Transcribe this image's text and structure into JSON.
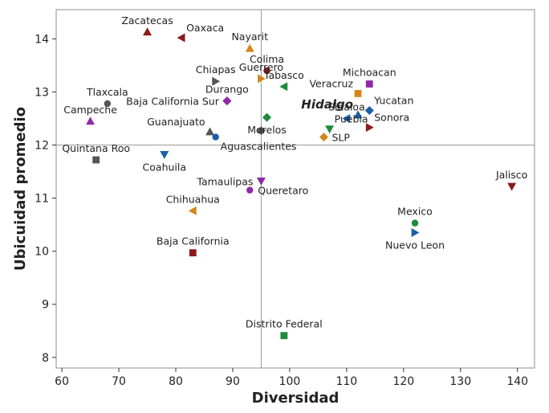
{
  "chart_data": {
    "type": "scatter",
    "title": "",
    "xlabel": "Diversidad",
    "ylabel": "Ubicuidad promedio",
    "xlim": [
      59,
      143
    ],
    "ylim": [
      7.8,
      14.55
    ],
    "xticks": [
      60,
      70,
      80,
      90,
      100,
      110,
      120,
      130,
      140
    ],
    "yticks": [
      8,
      9,
      10,
      11,
      12,
      13,
      14
    ],
    "reference_lines": {
      "x": 95,
      "y": 12
    },
    "points": [
      {
        "label": "Zacatecas",
        "x": 75,
        "y": 14.13,
        "marker": "triangle-up",
        "color": "#8b1a1a",
        "anchor": "n"
      },
      {
        "label": "Oaxaca",
        "x": 81,
        "y": 14.02,
        "marker": "triangle-left",
        "color": "#8b1a1a",
        "anchor": "ne"
      },
      {
        "label": "Nayarit",
        "x": 93,
        "y": 13.82,
        "marker": "triangle-up",
        "color": "#d4861c",
        "anchor": "n"
      },
      {
        "label": "Colima",
        "x": 96,
        "y": 13.4,
        "marker": "circle",
        "color": "#8b1a1a",
        "anchor": "n"
      },
      {
        "label": "Guerrero",
        "x": 95,
        "y": 13.25,
        "marker": "triangle-right",
        "color": "#d4861c",
        "anchor": "n"
      },
      {
        "label": "Chiapas",
        "x": 87,
        "y": 13.2,
        "marker": "triangle-right",
        "color": "#555555",
        "anchor": "n"
      },
      {
        "label": "Tabasco",
        "x": 99,
        "y": 13.1,
        "marker": "triangle-left",
        "color": "#1e8a3e",
        "anchor": "n"
      },
      {
        "label": "Tlaxcala",
        "x": 68,
        "y": 12.78,
        "marker": "circle",
        "color": "#555555",
        "anchor": "n"
      },
      {
        "label": "Durango",
        "x": 89,
        "y": 12.83,
        "marker": "diamond",
        "color": "#8e2aa8",
        "anchor": "n"
      },
      {
        "label": "Baja California Sur",
        "x": 89,
        "y": 12.83,
        "marker": "diamond",
        "color": "#8e2aa8",
        "anchor": "w"
      },
      {
        "label": "Campeche",
        "x": 65,
        "y": 12.45,
        "marker": "triangle-up",
        "color": "#8e2aa8",
        "anchor": "n"
      },
      {
        "label": "Michoacan",
        "x": 114,
        "y": 13.15,
        "marker": "square",
        "color": "#8e2aa8",
        "anchor": "n"
      },
      {
        "label": "Veracruz",
        "x": 112,
        "y": 12.97,
        "marker": "square",
        "color": "#d4861c",
        "anchor": "nw"
      },
      {
        "label": "Sinaloa",
        "x": 110,
        "y": 12.5,
        "marker": "triangle-left",
        "color": "#1a5ea8",
        "anchor": "n"
      },
      {
        "label": "Yucatan",
        "x": 114,
        "y": 12.65,
        "marker": "diamond",
        "color": "#1a5ea8",
        "anchor": "ne"
      },
      {
        "label": "Hidalgo",
        "x": 112,
        "y": 12.57,
        "marker": "triangle-up",
        "color": "#1a5ea8",
        "anchor": "nw",
        "highlight": true
      },
      {
        "label": "Sonora",
        "x": 114,
        "y": 12.33,
        "marker": "triangle-right",
        "color": "#8b1a1a",
        "anchor": "ne"
      },
      {
        "label": "Guanajuato",
        "x": 86,
        "y": 12.25,
        "marker": "triangle-up",
        "color": "#555555",
        "anchor": "nw"
      },
      {
        "label": "Morelos",
        "x": 96,
        "y": 12.52,
        "marker": "diamond",
        "color": "#1e8a3e",
        "anchor": "s"
      },
      {
        "label": "Puebla",
        "x": 107,
        "y": 12.3,
        "marker": "triangle-down",
        "color": "#1e8a3e",
        "anchor": "ne"
      },
      {
        "label": "SLP",
        "x": 106,
        "y": 12.15,
        "marker": "diamond",
        "color": "#d4861c",
        "anchor": "e"
      },
      {
        "label": "",
        "x": 95,
        "y": 12.27,
        "marker": "diamond",
        "color": "#555555",
        "anchor": "none"
      },
      {
        "label": "Aguascalientes",
        "x": 87,
        "y": 12.15,
        "marker": "circle",
        "color": "#1a5ea8",
        "anchor": "se"
      },
      {
        "label": "Quintana Roo",
        "x": 66,
        "y": 11.72,
        "marker": "square",
        "color": "#555555",
        "anchor": "n"
      },
      {
        "label": "Coahuila",
        "x": 78,
        "y": 11.82,
        "marker": "triangle-down",
        "color": "#1a5ea8",
        "anchor": "s"
      },
      {
        "label": "Tamaulipas",
        "x": 95,
        "y": 11.32,
        "marker": "triangle-down",
        "color": "#8e2aa8",
        "anchor": "w"
      },
      {
        "label": "Queretaro",
        "x": 93,
        "y": 11.15,
        "marker": "circle",
        "color": "#8e2aa8",
        "anchor": "e"
      },
      {
        "label": "Jalisco",
        "x": 139,
        "y": 11.22,
        "marker": "triangle-down",
        "color": "#8b1a1a",
        "anchor": "n"
      },
      {
        "label": "Chihuahua",
        "x": 83,
        "y": 10.76,
        "marker": "triangle-left",
        "color": "#d4861c",
        "anchor": "n"
      },
      {
        "label": "Mexico",
        "x": 122,
        "y": 10.53,
        "marker": "circle",
        "color": "#1e8a3e",
        "anchor": "n"
      },
      {
        "label": "Nuevo Leon",
        "x": 122,
        "y": 10.35,
        "marker": "triangle-right",
        "color": "#1a5ea8",
        "anchor": "s"
      },
      {
        "label": "Baja California",
        "x": 83,
        "y": 9.97,
        "marker": "square",
        "color": "#8b1a1a",
        "anchor": "n"
      },
      {
        "label": "Distrito Federal",
        "x": 99,
        "y": 8.41,
        "marker": "square",
        "color": "#1e8a3e",
        "anchor": "n"
      }
    ]
  }
}
